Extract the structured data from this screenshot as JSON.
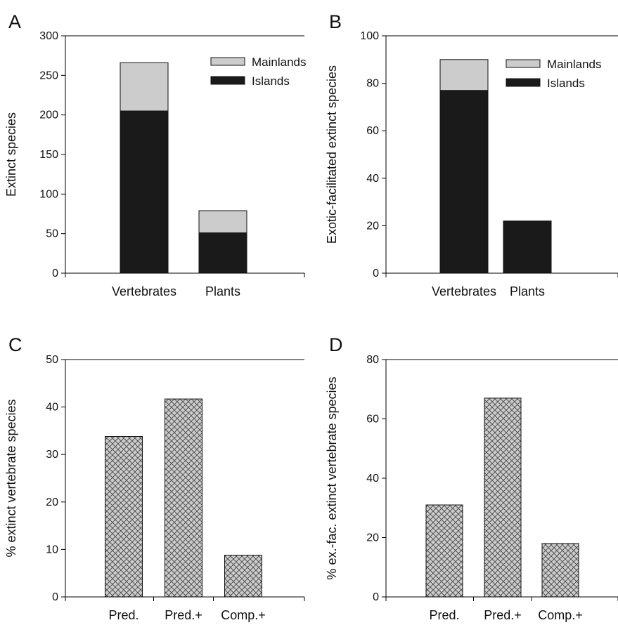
{
  "colors": {
    "islands": "#1a1a1a",
    "mainlands": "#cccccc",
    "hatch_fill": "#cccccc",
    "hatch_line": "#555555",
    "axis": "#000000"
  },
  "chart_data": [
    {
      "panel": "A",
      "type": "bar",
      "stacked": true,
      "ylabel": "Extinct species",
      "ylim": [
        0,
        300
      ],
      "yticks": [
        0,
        50,
        100,
        150,
        200,
        250,
        300
      ],
      "categories": [
        "Vertebrates",
        "Plants"
      ],
      "series": [
        {
          "name": "Islands",
          "color": "#1a1a1a",
          "values": [
            205,
            51
          ]
        },
        {
          "name": "Mainlands",
          "color": "#cccccc",
          "values": [
            61,
            28
          ]
        }
      ],
      "legend": {
        "position": "top-right",
        "items": [
          "Mainlands",
          "Islands"
        ]
      },
      "grid": false
    },
    {
      "panel": "B",
      "type": "bar",
      "stacked": true,
      "ylabel": "Exotic-facilitated extinct species",
      "ylim": [
        0,
        100
      ],
      "yticks": [
        0,
        20,
        40,
        60,
        80,
        100
      ],
      "categories": [
        "Vertebrates",
        "Plants"
      ],
      "series": [
        {
          "name": "Islands",
          "color": "#1a1a1a",
          "values": [
            77,
            22
          ]
        },
        {
          "name": "Mainlands",
          "color": "#cccccc",
          "values": [
            13,
            0
          ]
        }
      ],
      "legend": {
        "position": "top-right",
        "items": [
          "Mainlands",
          "Islands"
        ]
      },
      "grid": false
    },
    {
      "panel": "C",
      "type": "bar",
      "hatched": true,
      "ylabel": "% extinct vertebrate species",
      "ylim": [
        0,
        50
      ],
      "yticks": [
        0,
        10,
        20,
        30,
        40,
        50
      ],
      "categories": [
        "Pred.",
        "Pred.+",
        "Comp.+"
      ],
      "values": [
        33.8,
        41.7,
        8.8
      ],
      "grid": false
    },
    {
      "panel": "D",
      "type": "bar",
      "hatched": true,
      "ylabel": "% ex.-fac. extinct vertebrate species",
      "ylim": [
        0,
        80
      ],
      "yticks": [
        0,
        20,
        40,
        60,
        80
      ],
      "categories": [
        "Pred.",
        "Pred.+",
        "Comp.+"
      ],
      "values": [
        31,
        67,
        18
      ],
      "grid": false
    }
  ]
}
